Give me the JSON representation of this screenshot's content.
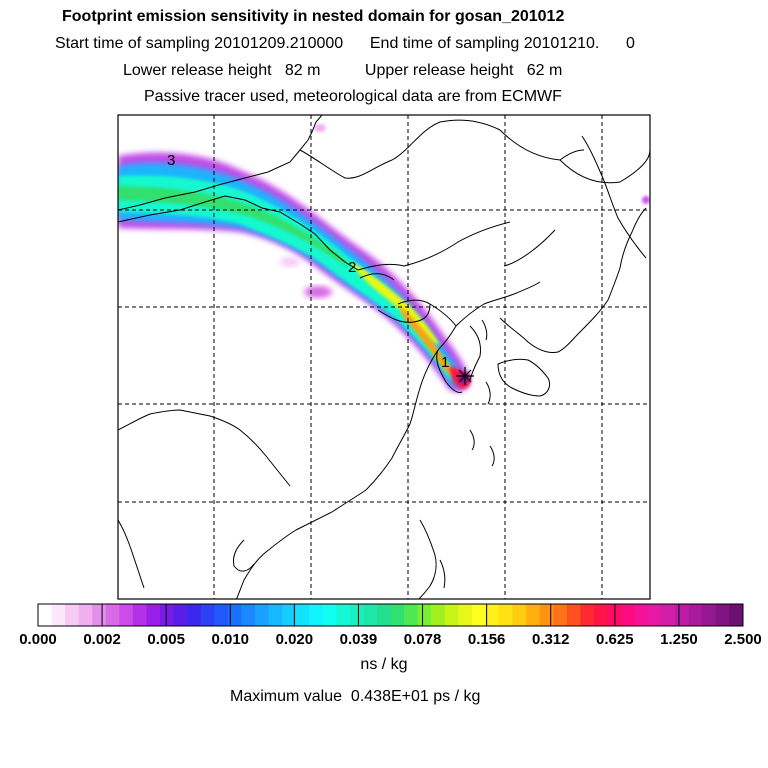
{
  "header": {
    "title": "Footprint emission sensitivity in nested domain for gosan_201012",
    "sampling": "Start time of sampling 20101209.210000      End time of sampling 20101210.      0",
    "release": "Lower release height   82 m          Upper release height   62 m",
    "tracer": "Passive tracer used, meteorological data are from ECMWF"
  },
  "map": {
    "site_marker": "*",
    "trajectory_labels": [
      "1",
      "2",
      "3"
    ]
  },
  "colorbar": {
    "tick_labels": [
      "0.000",
      "0.002",
      "0.005",
      "0.010",
      "0.020",
      "0.039",
      "0.078",
      "0.156",
      "0.312",
      "0.625",
      "1.250",
      "2.500"
    ],
    "colors": [
      "#ffffff",
      "#fbe6fb",
      "#f6ccf6",
      "#f0b0f0",
      "#e38ee8",
      "#d86ae6",
      "#c94de6",
      "#b331e6",
      "#9a1fe8",
      "#7a1ae8",
      "#5b1ee8",
      "#3c28ec",
      "#2c40f4",
      "#1f58fb",
      "#1a70ff",
      "#1a88ff",
      "#1aa0ff",
      "#18b8ff",
      "#14ceff",
      "#10e2ff",
      "#10f4ff",
      "#12fff0",
      "#14f8d8",
      "#18f0c0",
      "#1ee8a8",
      "#22e090",
      "#30e070",
      "#50e850",
      "#78f030",
      "#a0f020",
      "#c8f418",
      "#e8f818",
      "#ffff20",
      "#fff018",
      "#ffe010",
      "#ffcc10",
      "#ffb010",
      "#ff9410",
      "#ff7418",
      "#ff5020",
      "#ff2a30",
      "#ff1448",
      "#ff0a64",
      "#ff0a80",
      "#f5129a",
      "#e41aa6",
      "#d01ea6",
      "#bc1ca6",
      "#a81a9c",
      "#941890",
      "#801480",
      "#6a1070"
    ],
    "unit_label": "ns / kg",
    "maximum_text": "Maximum value  0.438E+01 ps / kg"
  }
}
